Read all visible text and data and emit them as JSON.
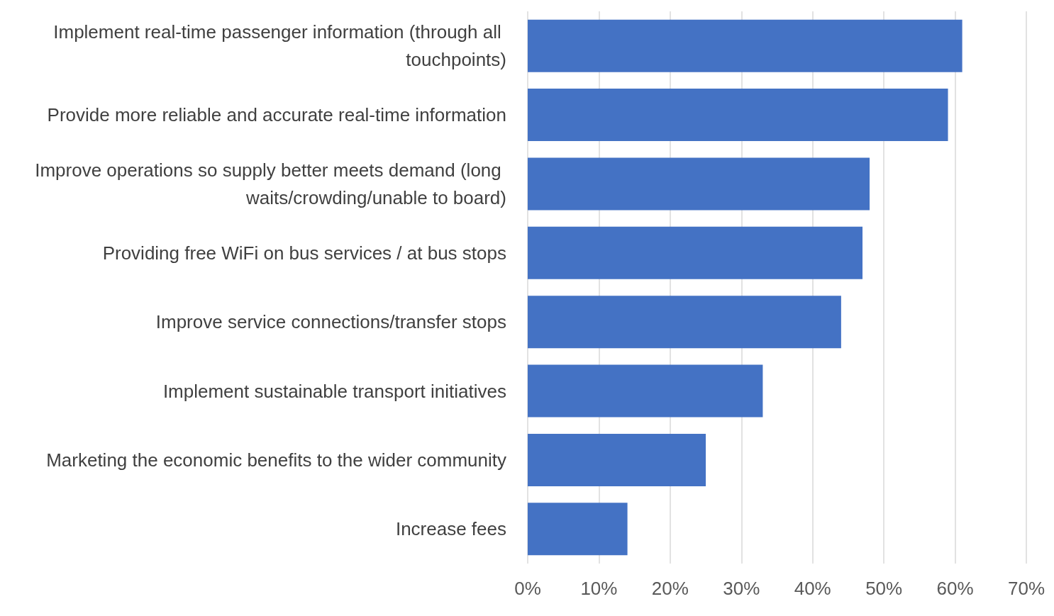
{
  "chart_data": {
    "type": "bar",
    "orientation": "horizontal",
    "categories": [
      "Implement real-time passenger information (through all touchpoints)",
      "Provide more reliable and accurate real-time information",
      "Improve operations so supply better meets demand (long waits/crowding/unable to board)",
      "Providing free WiFi on bus services / at bus stops",
      "Improve service connections/transfer stops",
      "Implement sustainable transport initiatives",
      "Marketing the economic benefits to the wider community",
      "Increase fees"
    ],
    "values": [
      61,
      59,
      48,
      47,
      44,
      33,
      25,
      14
    ],
    "color": "#4472c4",
    "xlim": [
      0,
      70
    ],
    "xticks": [
      {
        "value": 0,
        "label": "0%"
      },
      {
        "value": 10,
        "label": "10%"
      },
      {
        "value": 20,
        "label": "20%"
      },
      {
        "value": 30,
        "label": "30%"
      },
      {
        "value": 40,
        "label": "40%"
      },
      {
        "value": 50,
        "label": "50%"
      },
      {
        "value": 60,
        "label": "60%"
      },
      {
        "value": 70,
        "label": "70%"
      }
    ],
    "grid": "x"
  }
}
